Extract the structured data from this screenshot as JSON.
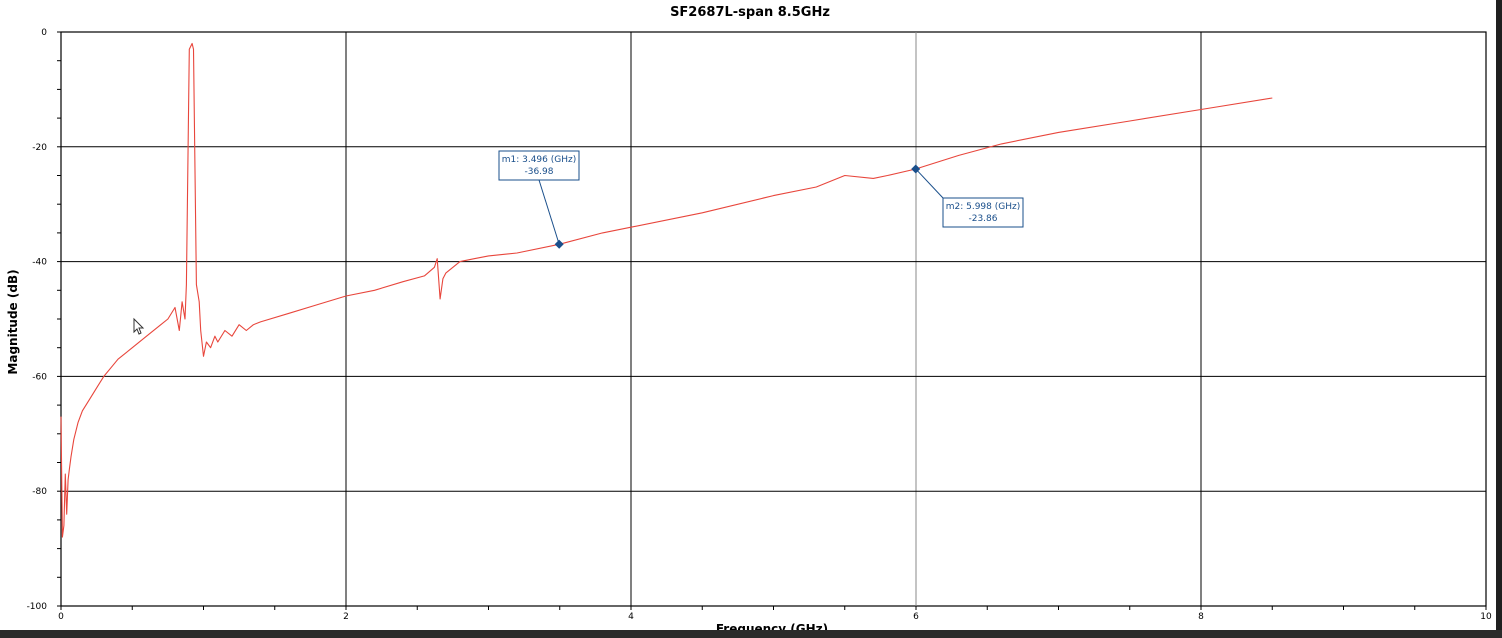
{
  "chart_data": {
    "type": "line",
    "title": "SF2687L-span 8.5GHz",
    "xlabel": "Frequency (GHz)",
    "ylabel": "Magnitude (dB)",
    "xlim": [
      0,
      10
    ],
    "ylim": [
      -100,
      0
    ],
    "x_ticks": [
      "0",
      "2",
      "4",
      "6",
      "8",
      "10"
    ],
    "y_ticks": [
      "0",
      "-20",
      "-40",
      "-60",
      "-80",
      "-100"
    ],
    "grid": true,
    "line_color": "#e8463c",
    "series": [
      {
        "x": [
          0.0,
          0.01,
          0.02,
          0.03,
          0.04,
          0.05,
          0.06,
          0.07,
          0.09,
          0.12,
          0.15,
          0.2,
          0.25,
          0.3,
          0.35,
          0.4,
          0.5,
          0.6,
          0.7,
          0.75,
          0.8,
          0.83,
          0.85,
          0.87,
          0.88,
          0.9,
          0.92,
          0.93,
          0.95,
          0.97,
          0.98,
          1.0,
          1.02,
          1.05,
          1.08,
          1.1,
          1.15,
          1.2,
          1.25,
          1.3,
          1.35,
          1.4,
          1.6,
          1.8,
          2.0,
          2.2,
          2.4,
          2.55,
          2.62,
          2.64,
          2.66,
          2.68,
          2.7,
          2.75,
          2.8,
          2.9,
          3.0,
          3.2,
          3.496,
          3.8,
          4.0,
          4.5,
          5.0,
          5.3,
          5.5,
          5.7,
          5.8,
          5.998,
          6.3,
          6.6,
          7.0,
          7.5,
          8.0,
          8.5
        ],
        "y": [
          -67,
          -88,
          -86,
          -77,
          -84,
          -78,
          -76,
          -74,
          -71,
          -68,
          -66,
          -64,
          -62,
          -60,
          -58.5,
          -57,
          -55,
          -53,
          -51,
          -50,
          -48,
          -52,
          -47,
          -50,
          -44,
          -3,
          -2,
          -3,
          -44,
          -47,
          -52,
          -56.5,
          -54,
          -55,
          -53,
          -54,
          -52,
          -53,
          -51,
          -52,
          -51,
          -50.5,
          -49,
          -47.5,
          -46,
          -45,
          -43.5,
          -42.5,
          -41,
          -39.5,
          -46.5,
          -43,
          -42,
          -41,
          -40,
          -39.5,
          -39,
          -38.5,
          -36.98,
          -35,
          -34,
          -31.5,
          -28.5,
          -27,
          -25,
          -25.5,
          -25,
          -23.86,
          -21.5,
          -19.5,
          -17.5,
          -15.5,
          -13.5,
          -11.5
        ]
      }
    ],
    "markers": [
      {
        "name": "m1",
        "label": "m1: 3.496 (GHz)",
        "value": "-36.98",
        "x": 3.496,
        "y": -36.98
      },
      {
        "name": "m2",
        "label": "m2: 5.998 (GHz)",
        "value": "-23.86",
        "x": 5.998,
        "y": -23.86
      }
    ]
  }
}
